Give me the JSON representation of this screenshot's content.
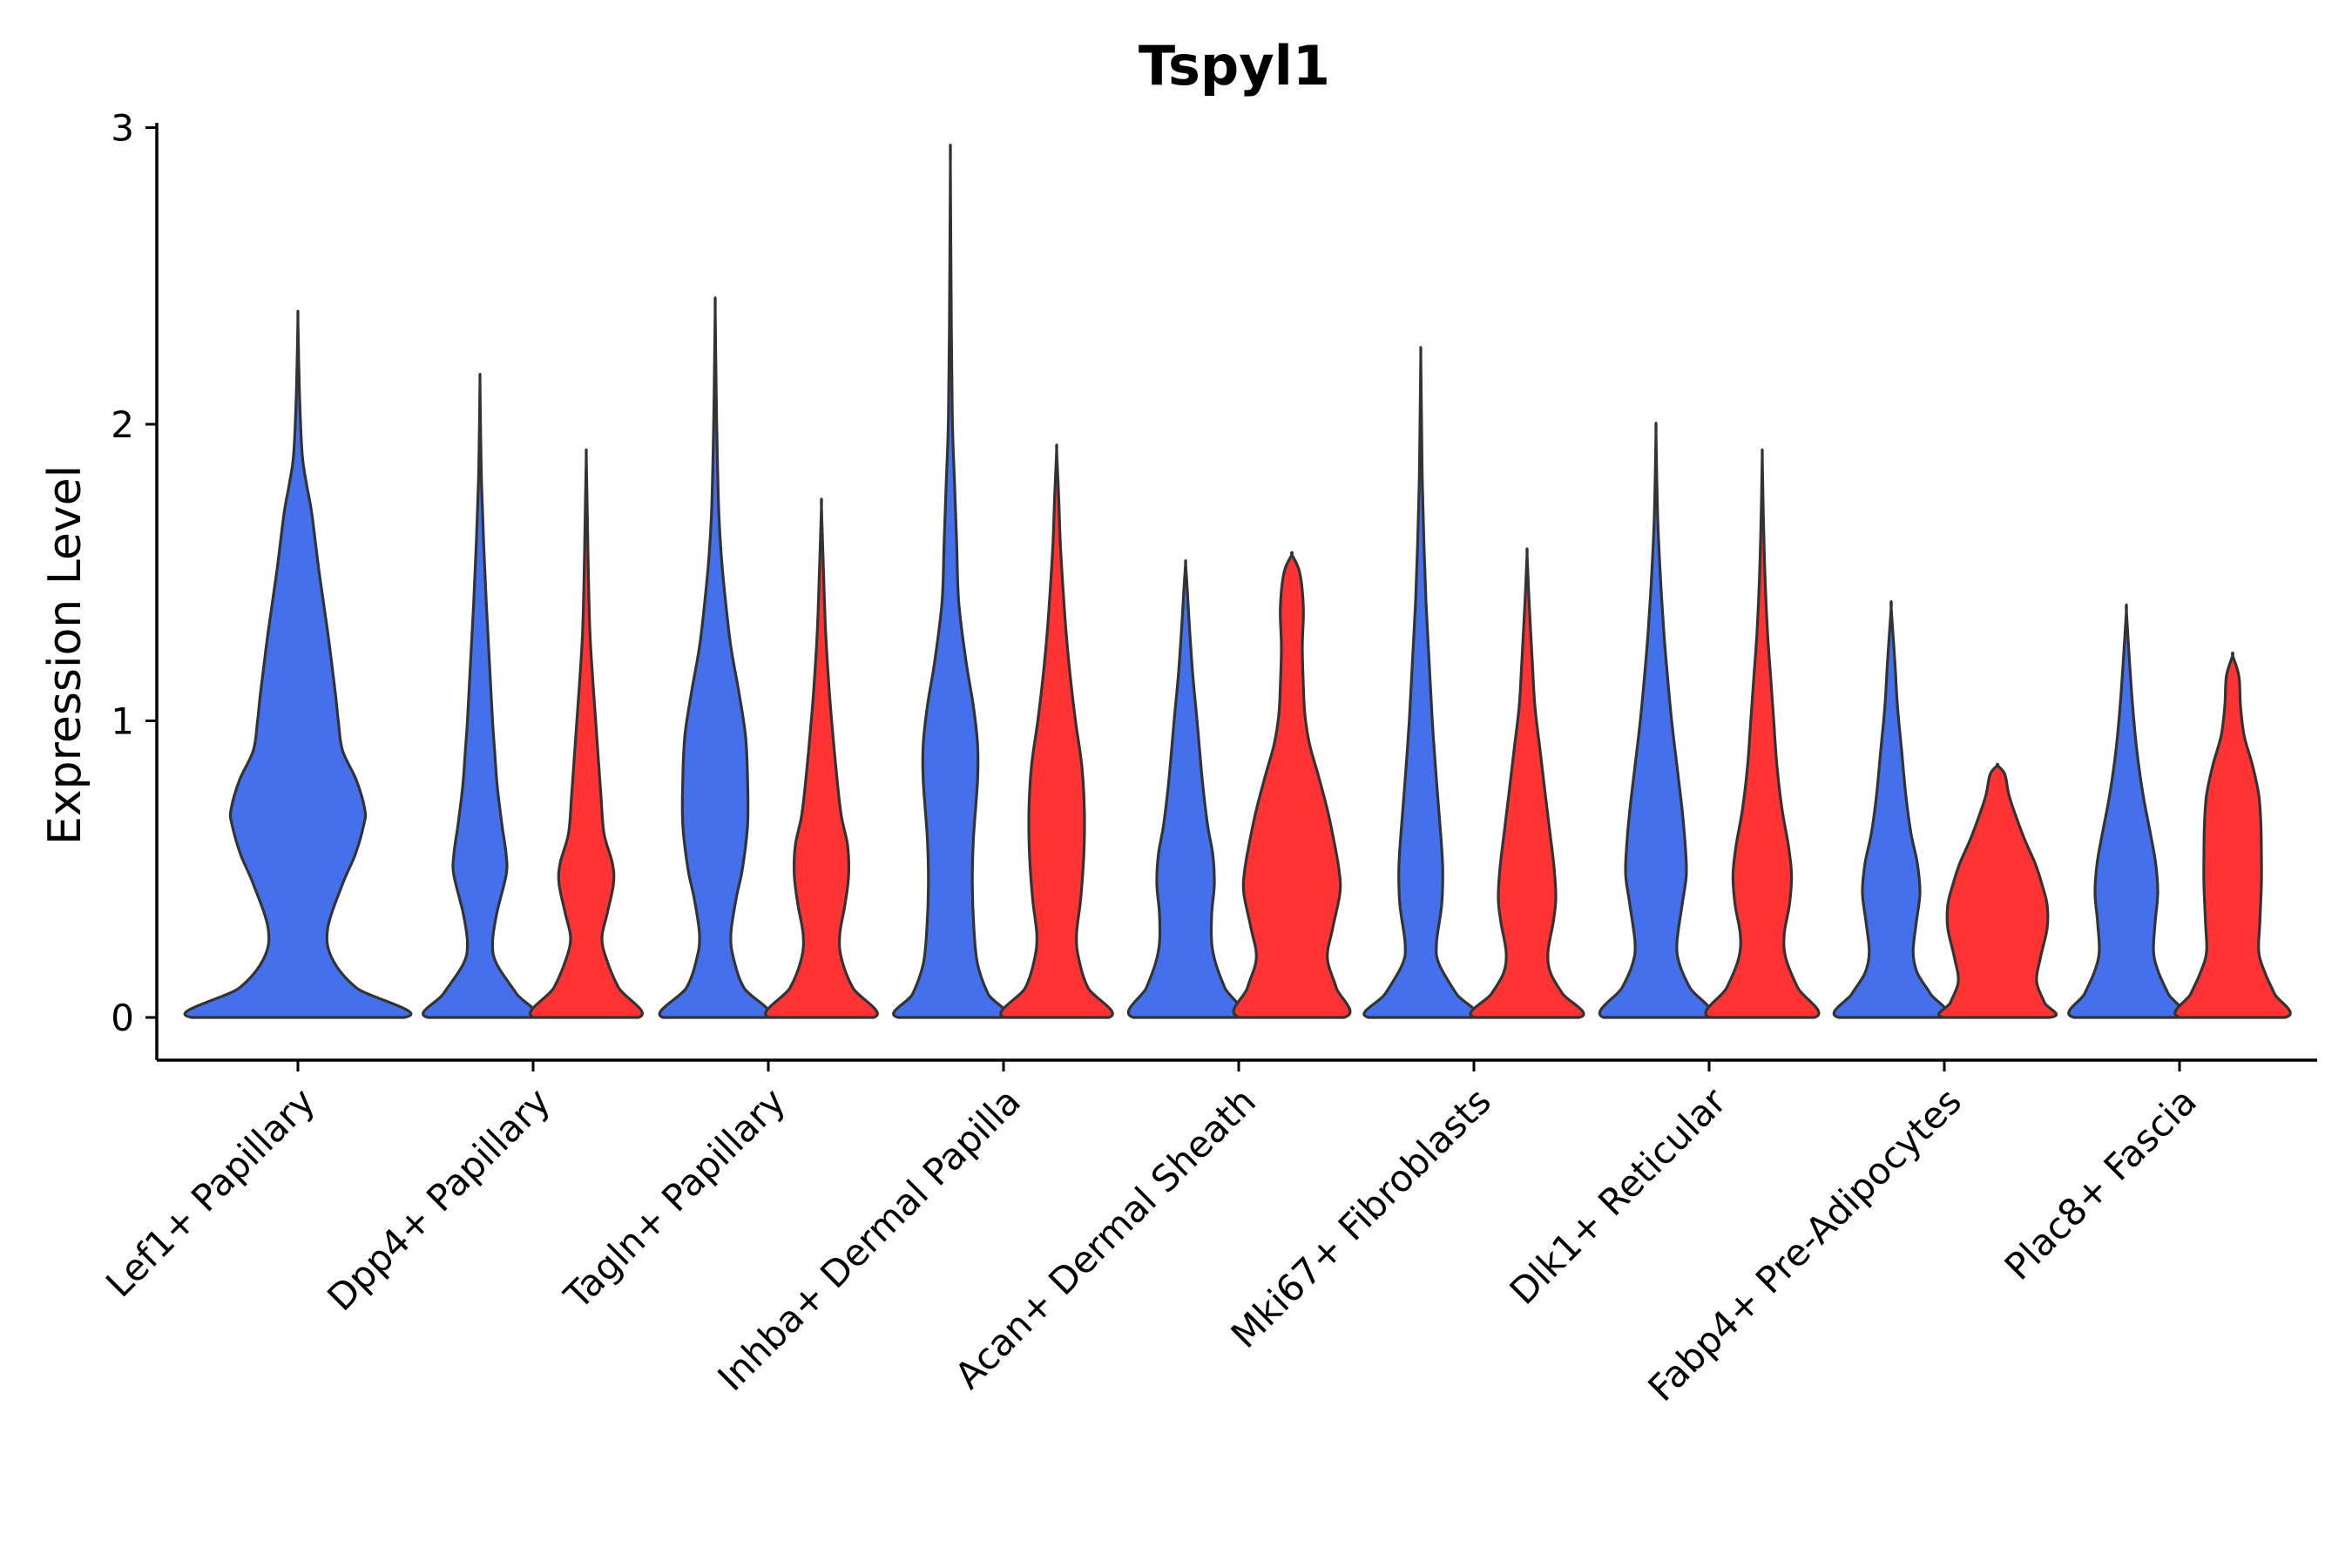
{
  "chart_data": {
    "type": "violin",
    "title": "Tspyl1",
    "xlabel": "",
    "ylabel": "Expression Level",
    "ylim": [
      -0.15,
      3.0
    ],
    "yticks": [
      0,
      1,
      2,
      3
    ],
    "grid": false,
    "legend": "none",
    "colors": {
      "group_1": "#4570eb",
      "group_2": "#ff3333",
      "outline": "#333333"
    },
    "categories": [
      "Lef1+ Papillary",
      "Dpp4+ Papillary",
      "Tagln+ Papillary",
      "Inhba+ Dermal Papilla",
      "Acan+ Dermal Sheath",
      "Mki67+ Fibroblasts",
      "Dlk1+ Reticular",
      "Fabp4+ Pre-Adipocytes",
      "Plac8+ Fascia"
    ],
    "violins": [
      {
        "category": "Lef1+ Papillary",
        "group": 1,
        "max": 2.35,
        "profile": [
          [
            0,
            1.0
          ],
          [
            0.1,
            0.55
          ],
          [
            0.2,
            0.32
          ],
          [
            0.3,
            0.28
          ],
          [
            0.45,
            0.42
          ],
          [
            0.55,
            0.54
          ],
          [
            0.65,
            0.62
          ],
          [
            0.7,
            0.63
          ],
          [
            0.8,
            0.55
          ],
          [
            0.9,
            0.42
          ],
          [
            1.0,
            0.38
          ],
          [
            1.1,
            0.35
          ],
          [
            1.3,
            0.28
          ],
          [
            1.5,
            0.2
          ],
          [
            1.7,
            0.13
          ],
          [
            1.8,
            0.08
          ],
          [
            1.9,
            0.04
          ],
          [
            2.1,
            0.015
          ],
          [
            2.35,
            0
          ]
        ]
      },
      {
        "category": "Dpp4+ Papillary",
        "group": 1,
        "max": 2.15,
        "profile": [
          [
            0,
            1.0
          ],
          [
            0.08,
            0.7
          ],
          [
            0.18,
            0.32
          ],
          [
            0.25,
            0.24
          ],
          [
            0.35,
            0.32
          ],
          [
            0.48,
            0.5
          ],
          [
            0.55,
            0.5
          ],
          [
            0.65,
            0.42
          ],
          [
            0.78,
            0.33
          ],
          [
            0.9,
            0.28
          ],
          [
            1.0,
            0.24
          ],
          [
            1.2,
            0.18
          ],
          [
            1.4,
            0.12
          ],
          [
            1.6,
            0.07
          ],
          [
            1.8,
            0.03
          ],
          [
            2.0,
            0.01
          ],
          [
            2.15,
            0
          ]
        ]
      },
      {
        "category": "Dpp4+ Papillary",
        "group": 2,
        "max": 1.89,
        "profile": [
          [
            0,
            1.0
          ],
          [
            0.1,
            0.62
          ],
          [
            0.2,
            0.38
          ],
          [
            0.27,
            0.3
          ],
          [
            0.35,
            0.4
          ],
          [
            0.45,
            0.52
          ],
          [
            0.52,
            0.5
          ],
          [
            0.62,
            0.34
          ],
          [
            0.75,
            0.28
          ],
          [
            0.9,
            0.22
          ],
          [
            1.0,
            0.18
          ],
          [
            1.15,
            0.12
          ],
          [
            1.3,
            0.07
          ],
          [
            1.5,
            0.04
          ],
          [
            1.7,
            0.02
          ],
          [
            1.89,
            0
          ]
        ]
      },
      {
        "category": "Tagln+ Papillary",
        "group": 1,
        "max": 2.39,
        "profile": [
          [
            0,
            1.0
          ],
          [
            0.1,
            0.55
          ],
          [
            0.2,
            0.35
          ],
          [
            0.28,
            0.3
          ],
          [
            0.4,
            0.4
          ],
          [
            0.5,
            0.52
          ],
          [
            0.65,
            0.62
          ],
          [
            0.8,
            0.62
          ],
          [
            0.95,
            0.58
          ],
          [
            1.1,
            0.45
          ],
          [
            1.25,
            0.3
          ],
          [
            1.4,
            0.2
          ],
          [
            1.55,
            0.12
          ],
          [
            1.7,
            0.07
          ],
          [
            1.9,
            0.04
          ],
          [
            2.1,
            0.02
          ],
          [
            2.39,
            0
          ]
        ]
      },
      {
        "category": "Tagln+ Papillary",
        "group": 2,
        "max": 1.72,
        "profile": [
          [
            0,
            1.0
          ],
          [
            0.1,
            0.6
          ],
          [
            0.2,
            0.38
          ],
          [
            0.28,
            0.35
          ],
          [
            0.38,
            0.45
          ],
          [
            0.48,
            0.52
          ],
          [
            0.58,
            0.5
          ],
          [
            0.68,
            0.38
          ],
          [
            0.8,
            0.3
          ],
          [
            0.95,
            0.22
          ],
          [
            1.1,
            0.15
          ],
          [
            1.3,
            0.08
          ],
          [
            1.5,
            0.04
          ],
          [
            1.72,
            0
          ]
        ]
      },
      {
        "category": "Inhba+ Dermal Papilla",
        "group": 1,
        "max": 2.87,
        "profile": [
          [
            0,
            1.0
          ],
          [
            0.08,
            0.72
          ],
          [
            0.18,
            0.52
          ],
          [
            0.3,
            0.45
          ],
          [
            0.45,
            0.42
          ],
          [
            0.6,
            0.44
          ],
          [
            0.8,
            0.52
          ],
          [
            0.92,
            0.52
          ],
          [
            1.05,
            0.44
          ],
          [
            1.2,
            0.3
          ],
          [
            1.4,
            0.16
          ],
          [
            1.6,
            0.12
          ],
          [
            1.8,
            0.08
          ],
          [
            2.0,
            0.04
          ],
          [
            2.3,
            0.02
          ],
          [
            2.87,
            0
          ]
        ]
      },
      {
        "category": "Inhba+ Dermal Papilla",
        "group": 2,
        "max": 1.91,
        "profile": [
          [
            0,
            1.0
          ],
          [
            0.1,
            0.6
          ],
          [
            0.2,
            0.42
          ],
          [
            0.28,
            0.38
          ],
          [
            0.4,
            0.46
          ],
          [
            0.55,
            0.52
          ],
          [
            0.7,
            0.53
          ],
          [
            0.85,
            0.48
          ],
          [
            1.0,
            0.36
          ],
          [
            1.15,
            0.26
          ],
          [
            1.3,
            0.18
          ],
          [
            1.45,
            0.12
          ],
          [
            1.6,
            0.07
          ],
          [
            1.75,
            0.04
          ],
          [
            1.91,
            0
          ]
        ]
      },
      {
        "category": "Acan+ Dermal Sheath",
        "group": 1,
        "max": 1.53,
        "profile": [
          [
            0,
            1.0
          ],
          [
            0.1,
            0.75
          ],
          [
            0.18,
            0.58
          ],
          [
            0.25,
            0.5
          ],
          [
            0.35,
            0.5
          ],
          [
            0.45,
            0.55
          ],
          [
            0.55,
            0.52
          ],
          [
            0.65,
            0.42
          ],
          [
            0.8,
            0.32
          ],
          [
            1.0,
            0.22
          ],
          [
            1.15,
            0.14
          ],
          [
            1.3,
            0.08
          ],
          [
            1.45,
            0.03
          ],
          [
            1.53,
            0
          ]
        ]
      },
      {
        "category": "Acan+ Dermal Sheath",
        "group": 2,
        "max": 1.56,
        "profile": [
          [
            0,
            1.0
          ],
          [
            0.1,
            0.85
          ],
          [
            0.2,
            0.68
          ],
          [
            0.3,
            0.78
          ],
          [
            0.42,
            0.92
          ],
          [
            0.5,
            0.9
          ],
          [
            0.6,
            0.8
          ],
          [
            0.7,
            0.68
          ],
          [
            0.82,
            0.5
          ],
          [
            0.92,
            0.34
          ],
          [
            1.02,
            0.25
          ],
          [
            1.12,
            0.22
          ],
          [
            1.25,
            0.2
          ],
          [
            1.38,
            0.22
          ],
          [
            1.5,
            0.15
          ],
          [
            1.56,
            0
          ]
        ]
      },
      {
        "category": "Mki67+ Fibroblasts",
        "group": 1,
        "max": 2.23,
        "profile": [
          [
            0,
            1.0
          ],
          [
            0.08,
            0.68
          ],
          [
            0.18,
            0.35
          ],
          [
            0.25,
            0.3
          ],
          [
            0.38,
            0.4
          ],
          [
            0.5,
            0.42
          ],
          [
            0.62,
            0.38
          ],
          [
            0.8,
            0.3
          ],
          [
            1.0,
            0.22
          ],
          [
            1.2,
            0.16
          ],
          [
            1.4,
            0.1
          ],
          [
            1.6,
            0.06
          ],
          [
            1.8,
            0.03
          ],
          [
            2.0,
            0.015
          ],
          [
            2.23,
            0
          ]
        ]
      },
      {
        "category": "Mki67+ Fibroblasts",
        "group": 2,
        "max": 1.56,
        "profile": [
          [
            0,
            1.0
          ],
          [
            0.08,
            0.68
          ],
          [
            0.15,
            0.45
          ],
          [
            0.22,
            0.4
          ],
          [
            0.32,
            0.5
          ],
          [
            0.4,
            0.55
          ],
          [
            0.5,
            0.52
          ],
          [
            0.62,
            0.44
          ],
          [
            0.75,
            0.35
          ],
          [
            0.9,
            0.25
          ],
          [
            1.05,
            0.15
          ],
          [
            1.2,
            0.1
          ],
          [
            1.4,
            0.04
          ],
          [
            1.56,
            0
          ]
        ]
      },
      {
        "category": "Dlk1+ Reticular",
        "group": 1,
        "max": 1.97,
        "profile": [
          [
            0,
            1.0
          ],
          [
            0.1,
            0.65
          ],
          [
            0.18,
            0.45
          ],
          [
            0.25,
            0.4
          ],
          [
            0.38,
            0.5
          ],
          [
            0.48,
            0.58
          ],
          [
            0.58,
            0.56
          ],
          [
            0.7,
            0.5
          ],
          [
            0.85,
            0.4
          ],
          [
            1.0,
            0.3
          ],
          [
            1.15,
            0.22
          ],
          [
            1.3,
            0.15
          ],
          [
            1.5,
            0.08
          ],
          [
            1.7,
            0.03
          ],
          [
            1.97,
            0
          ]
        ]
      },
      {
        "category": "Dlk1+ Reticular",
        "group": 2,
        "max": 1.89,
        "profile": [
          [
            0,
            1.0
          ],
          [
            0.1,
            0.68
          ],
          [
            0.2,
            0.45
          ],
          [
            0.28,
            0.42
          ],
          [
            0.38,
            0.52
          ],
          [
            0.48,
            0.56
          ],
          [
            0.58,
            0.5
          ],
          [
            0.7,
            0.38
          ],
          [
            0.85,
            0.28
          ],
          [
            1.0,
            0.22
          ],
          [
            1.15,
            0.16
          ],
          [
            1.3,
            0.1
          ],
          [
            1.5,
            0.05
          ],
          [
            1.7,
            0.02
          ],
          [
            1.89,
            0
          ]
        ]
      },
      {
        "category": "Fabp4+ Pre-Adipocytes",
        "group": 1,
        "max": 1.38,
        "profile": [
          [
            0,
            1.0
          ],
          [
            0.08,
            0.75
          ],
          [
            0.15,
            0.5
          ],
          [
            0.22,
            0.42
          ],
          [
            0.32,
            0.48
          ],
          [
            0.42,
            0.55
          ],
          [
            0.52,
            0.5
          ],
          [
            0.62,
            0.38
          ],
          [
            0.75,
            0.28
          ],
          [
            0.9,
            0.2
          ],
          [
            1.05,
            0.12
          ],
          [
            1.2,
            0.07
          ],
          [
            1.38,
            0
          ]
        ]
      },
      {
        "category": "Fabp4+ Pre-Adipocytes",
        "group": 2,
        "max": 0.85,
        "profile": [
          [
            0,
            1.0
          ],
          [
            0.05,
            0.9
          ],
          [
            0.12,
            0.75
          ],
          [
            0.2,
            0.82
          ],
          [
            0.3,
            0.95
          ],
          [
            0.38,
            0.95
          ],
          [
            0.45,
            0.85
          ],
          [
            0.52,
            0.72
          ],
          [
            0.6,
            0.52
          ],
          [
            0.68,
            0.35
          ],
          [
            0.75,
            0.22
          ],
          [
            0.82,
            0.14
          ],
          [
            0.85,
            0
          ]
        ]
      },
      {
        "category": "Plac8+ Fascia",
        "group": 1,
        "max": 1.37,
        "profile": [
          [
            0,
            1.0
          ],
          [
            0.08,
            0.8
          ],
          [
            0.15,
            0.62
          ],
          [
            0.22,
            0.52
          ],
          [
            0.32,
            0.55
          ],
          [
            0.42,
            0.6
          ],
          [
            0.52,
            0.56
          ],
          [
            0.62,
            0.46
          ],
          [
            0.75,
            0.32
          ],
          [
            0.9,
            0.2
          ],
          [
            1.05,
            0.12
          ],
          [
            1.2,
            0.06
          ],
          [
            1.37,
            0
          ]
        ]
      },
      {
        "category": "Plac8+ Fascia",
        "group": 2,
        "max": 1.22,
        "profile": [
          [
            0,
            1.0
          ],
          [
            0.08,
            0.8
          ],
          [
            0.15,
            0.62
          ],
          [
            0.22,
            0.5
          ],
          [
            0.32,
            0.52
          ],
          [
            0.45,
            0.55
          ],
          [
            0.55,
            0.55
          ],
          [
            0.65,
            0.54
          ],
          [
            0.75,
            0.5
          ],
          [
            0.85,
            0.38
          ],
          [
            0.95,
            0.22
          ],
          [
            1.05,
            0.15
          ],
          [
            1.15,
            0.12
          ],
          [
            1.22,
            0
          ]
        ]
      }
    ]
  }
}
